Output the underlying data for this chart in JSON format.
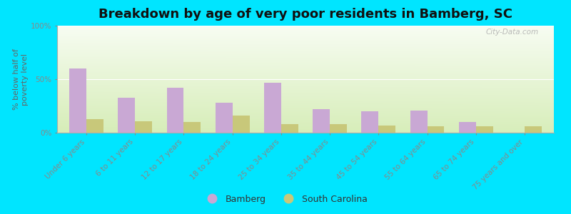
{
  "title": "Breakdown by age of very poor residents in Bamberg, SC",
  "ylabel": "% below half of\npoverty level",
  "categories": [
    "Under 6 years",
    "6 to 11 years",
    "12 to 17 years",
    "18 to 24 years",
    "25 to 34 years",
    "35 to 44 years",
    "45 to 54 years",
    "55 to 64 years",
    "65 to 74 years",
    "75 years and over"
  ],
  "bamberg_values": [
    60,
    33,
    42,
    28,
    47,
    22,
    20,
    21,
    10,
    0
  ],
  "sc_values": [
    13,
    11,
    10,
    16,
    8,
    8,
    7,
    6,
    6,
    6
  ],
  "bamberg_color": "#c9a8d4",
  "sc_color": "#c8c87a",
  "bar_width": 0.35,
  "ylim": [
    0,
    100
  ],
  "yticks": [
    0,
    50,
    100
  ],
  "yticklabels": [
    "0%",
    "50%",
    "100%"
  ],
  "bg_outer": "#00e5ff",
  "bg_plot_top_color": "#f5f8f0",
  "bg_plot_bottom_color": "#d8edc0",
  "title_fontsize": 13,
  "axis_label_fontsize": 8,
  "tick_label_fontsize": 7.5,
  "legend_fontsize": 9,
  "tick_label_color": "#886644",
  "watermark_text": "City-Data.com"
}
